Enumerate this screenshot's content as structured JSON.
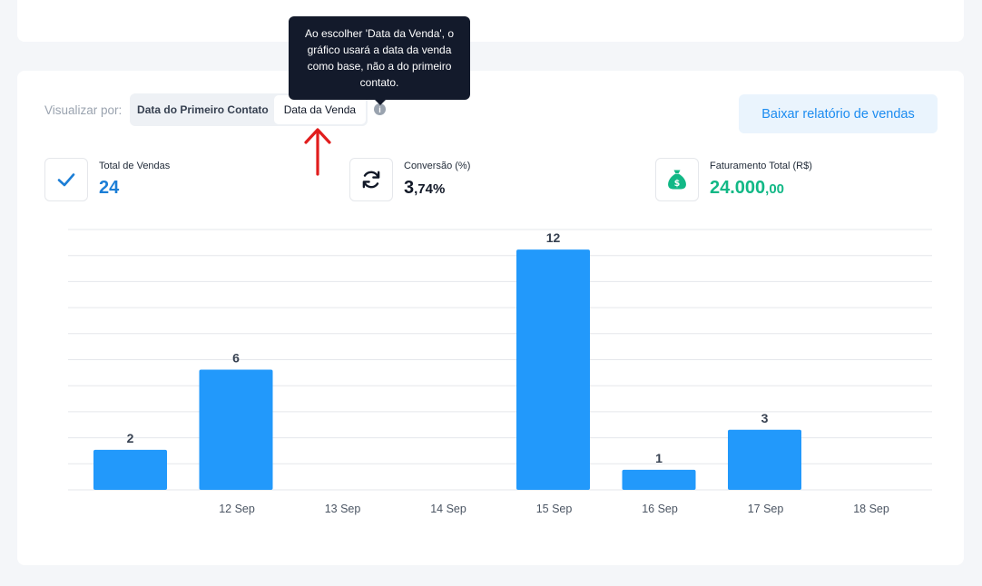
{
  "filters": {
    "label": "Visualizar por:",
    "options": [
      {
        "label": "Data do Primeiro Contato",
        "active": false
      },
      {
        "label": "Data da Venda",
        "active": true
      }
    ],
    "info_icon": "i"
  },
  "tooltip": {
    "text": "Ao escolher 'Data da Venda', o gráfico usará a data da venda como base, não a do primeiro contato."
  },
  "actions": {
    "download_label": "Baixar relatório de vendas"
  },
  "kpis": {
    "total_vendas": {
      "label": "Total de Vendas",
      "value": "24",
      "icon": "check-icon",
      "color": "#1c7ed6"
    },
    "conversao": {
      "label": "Conversão (%)",
      "value_int": "3",
      "value_dec": ",74%",
      "icon": "refresh-icon",
      "color": "#111827"
    },
    "faturamento": {
      "label": "Faturamento Total (R$)",
      "value_int": "24.000",
      "value_dec": ",00",
      "icon": "money-bag-icon",
      "color": "#12b886"
    }
  },
  "colors": {
    "bar": "#2299fb",
    "grid": "#e5e7eb",
    "accent": "#1c8cf0",
    "annotation_arrow": "#e11d1d"
  },
  "chart_data": {
    "type": "bar",
    "categories": [
      "",
      "12 Sep",
      "13 Sep",
      "14 Sep",
      "15 Sep",
      "16 Sep",
      "17 Sep",
      "18 Sep"
    ],
    "values": [
      2,
      6,
      0,
      0,
      12,
      1,
      3,
      0
    ],
    "data_labels": [
      "2",
      "6",
      "",
      "",
      "12",
      "1",
      "3",
      ""
    ],
    "ylim": [
      0,
      13
    ],
    "grid": true,
    "legend": "none",
    "title": "",
    "xlabel": "",
    "ylabel": ""
  }
}
